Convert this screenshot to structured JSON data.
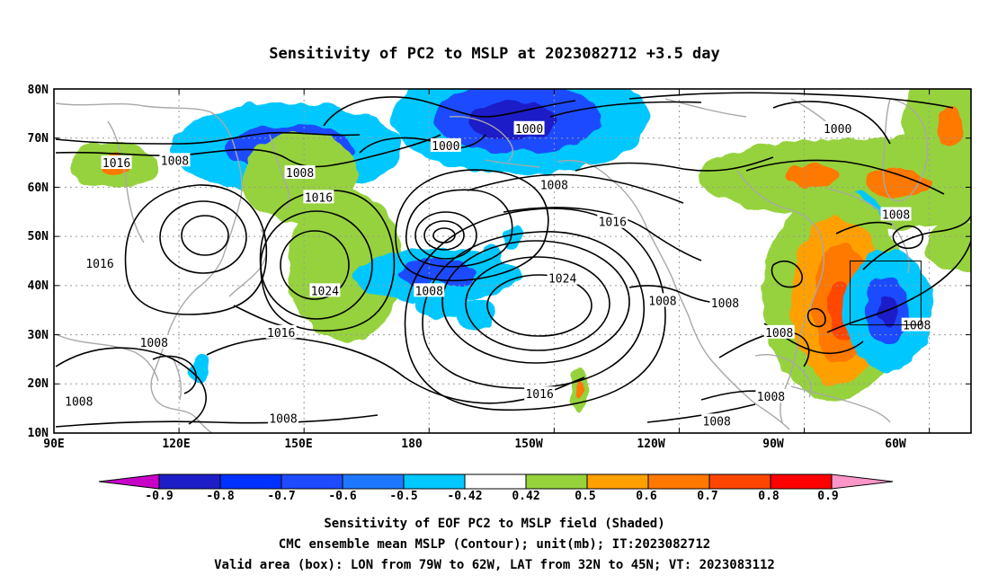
{
  "title": "Sensitivity of PC2 to MSLP at 2023082712 +3.5 day",
  "map": {
    "lat_labels": [
      "80N",
      "70N",
      "60N",
      "50N",
      "40N",
      "30N",
      "20N",
      "10N"
    ],
    "lon_labels": [
      "90E",
      "120E",
      "150E",
      "180",
      "150W",
      "120W",
      "90W",
      "60W"
    ]
  },
  "contours": {
    "unit": "mb",
    "labels": [
      {
        "text": "1016",
        "lon": 105,
        "lat": 65
      },
      {
        "text": "1008",
        "lon": 119,
        "lat": 65.5
      },
      {
        "text": "1008",
        "lon": 149,
        "lat": 63
      },
      {
        "text": "1016",
        "lon": 153.5,
        "lat": 58
      },
      {
        "text": "1000",
        "lon": -176,
        "lat": 68.5
      },
      {
        "text": "1000",
        "lon": -156,
        "lat": 72
      },
      {
        "text": "1008",
        "lon": -150,
        "lat": 60.5
      },
      {
        "text": "1016",
        "lon": -136,
        "lat": 53
      },
      {
        "text": "1024",
        "lon": -148,
        "lat": 41.5
      },
      {
        "text": "1016",
        "lon": 101,
        "lat": 44.5
      },
      {
        "text": "1024",
        "lon": 155,
        "lat": 39
      },
      {
        "text": "1016",
        "lon": 144.5,
        "lat": 30.5
      },
      {
        "text": "1008",
        "lon": -180,
        "lat": 39
      },
      {
        "text": "1008",
        "lon": -124,
        "lat": 37
      },
      {
        "text": "1008",
        "lon": -109,
        "lat": 36.5
      },
      {
        "text": "1008",
        "lon": 114,
        "lat": 28.5
      },
      {
        "text": "1008",
        "lon": 96,
        "lat": 16.5
      },
      {
        "text": "1008",
        "lon": 145,
        "lat": 13
      },
      {
        "text": "1016",
        "lon": -153.5,
        "lat": 18
      },
      {
        "text": "1000",
        "lon": -82,
        "lat": 72
      },
      {
        "text": "1008",
        "lon": -68,
        "lat": 54.5
      },
      {
        "text": "1008",
        "lon": -96,
        "lat": 30.5
      },
      {
        "text": "1008",
        "lon": -98,
        "lat": 17.5
      },
      {
        "text": "1008",
        "lon": -111,
        "lat": 12.5
      },
      {
        "text": "1008",
        "lon": -63,
        "lat": 32
      }
    ]
  },
  "colorbar": {
    "labels": [
      "-0.9",
      "-0.8",
      "-0.7",
      "-0.6",
      "-0.5",
      "-0.42",
      "0.42",
      "0.5",
      "0.6",
      "0.7",
      "0.8",
      "0.9"
    ],
    "colors": [
      "#c800c8",
      "#1e1ec8",
      "#0032ff",
      "#1e4bff",
      "#1e78ff",
      "#00c8ff",
      "#ffffff",
      "#96d23c",
      "#ffa000",
      "#ff7800",
      "#ff4600",
      "#ff0000",
      "#ff96c8"
    ]
  },
  "shading": [
    {
      "lon": -158,
      "lat": 74,
      "rx": 40,
      "ry": 15,
      "color": "#00c8ff"
    },
    {
      "lon": -159,
      "lat": 74,
      "rx": 26,
      "ry": 9,
      "color": "#1e4bff"
    },
    {
      "lon": -160,
      "lat": 73.5,
      "rx": 14,
      "ry": 5,
      "color": "#1e1ec8"
    },
    {
      "lon": 146,
      "lat": 68,
      "rx": 36,
      "ry": 12,
      "color": "#00c8ff"
    },
    {
      "lon": 147,
      "lat": 68,
      "rx": 20,
      "ry": 6,
      "color": "#1e4bff"
    },
    {
      "lon": 149,
      "lat": 62,
      "rx": 18,
      "ry": 12,
      "color": "#96d23c"
    },
    {
      "lon": 104,
      "lat": 64.5,
      "rx": 14,
      "ry": 6,
      "color": "#96d23c"
    },
    {
      "lon": 105,
      "lat": 64.5,
      "rx": 4,
      "ry": 3,
      "color": "#ff7800"
    },
    {
      "lon": 160,
      "lat": 44,
      "rx": 18,
      "ry": 20,
      "color": "#96d23c"
    },
    {
      "lon": -178,
      "lat": 42,
      "rx": 26,
      "ry": 7,
      "color": "#00c8ff"
    },
    {
      "lon": -178,
      "lat": 42.5,
      "rx": 12,
      "ry": 4,
      "color": "#1e4bff"
    },
    {
      "lon": -177,
      "lat": 37,
      "rx": 8,
      "ry": 5,
      "color": "#00c8ff"
    },
    {
      "lon": -169,
      "lat": 34,
      "rx": 6,
      "ry": 4,
      "color": "#00c8ff"
    },
    {
      "lon": -83,
      "lat": 62,
      "rx": 42,
      "ry": 10,
      "color": "#96d23c"
    },
    {
      "lon": -67,
      "lat": 61,
      "rx": 38,
      "ry": 12,
      "color": "#96d23c"
    },
    {
      "lon": -68,
      "lat": 61,
      "rx": 10,
      "ry": 4,
      "color": "#ff7800"
    },
    {
      "lon": -88,
      "lat": 62.5,
      "rx": 8,
      "ry": 3,
      "color": "#ff7800"
    },
    {
      "lon": -54,
      "lat": 73,
      "rx": 16,
      "ry": 18,
      "color": "#96d23c"
    },
    {
      "lon": -55,
      "lat": 72,
      "rx": 4,
      "ry": 5,
      "color": "#ff7800"
    },
    {
      "lon": -77,
      "lat": 52,
      "rx": 8,
      "ry": 9,
      "color": "#00c8ff"
    },
    {
      "lon": -52,
      "lat": 48,
      "rx": 12,
      "ry": 7,
      "color": "#96d23c"
    },
    {
      "lon": -83,
      "lat": 38,
      "rx": 22,
      "ry": 28,
      "color": "#96d23c"
    },
    {
      "lon": -82,
      "lat": 37,
      "rx": 15,
      "ry": 22,
      "color": "#ffa000"
    },
    {
      "lon": -81,
      "lat": 36.5,
      "rx": 9,
      "ry": 16,
      "color": "#ff7800"
    },
    {
      "lon": -81,
      "lat": 35,
      "rx": 4,
      "ry": 8,
      "color": "#ff4600"
    },
    {
      "lon": -70,
      "lat": 35,
      "rx": 14,
      "ry": 16,
      "color": "#00c8ff"
    },
    {
      "lon": -70,
      "lat": 35,
      "rx": 7,
      "ry": 9,
      "color": "#1e4bff"
    },
    {
      "lon": -70,
      "lat": 35,
      "rx": 3,
      "ry": 4,
      "color": "#1e1ec8"
    },
    {
      "lon": -144,
      "lat": 18.5,
      "rx": 3,
      "ry": 6,
      "color": "#96d23c"
    },
    {
      "lon": -144,
      "lat": 19,
      "rx": 1.4,
      "ry": 2.5,
      "color": "#ff7800"
    },
    {
      "lon": 125,
      "lat": 23,
      "rx": 3,
      "ry": 4,
      "color": "#00c8ff"
    },
    {
      "lon": -160,
      "lat": 50,
      "rx": 3,
      "ry": 3,
      "color": "#00c8ff"
    },
    {
      "lon": -165,
      "lat": 45,
      "rx": 3,
      "ry": 4,
      "color": "#00c8ff"
    }
  ],
  "valid_box": {
    "lon_w": -79,
    "lon_e": -62,
    "lat_s": 32,
    "lat_n": 45
  },
  "captions": {
    "line1": "Sensitivity of EOF PC2 to MSLP field (Shaded)",
    "line2": "CMC ensemble mean MSLP (Contour); unit(mb); IT:2023082712",
    "line3": "Valid area (box): LON from 79W to 62W, LAT from 32N to 45N; VT: 2023083112"
  }
}
